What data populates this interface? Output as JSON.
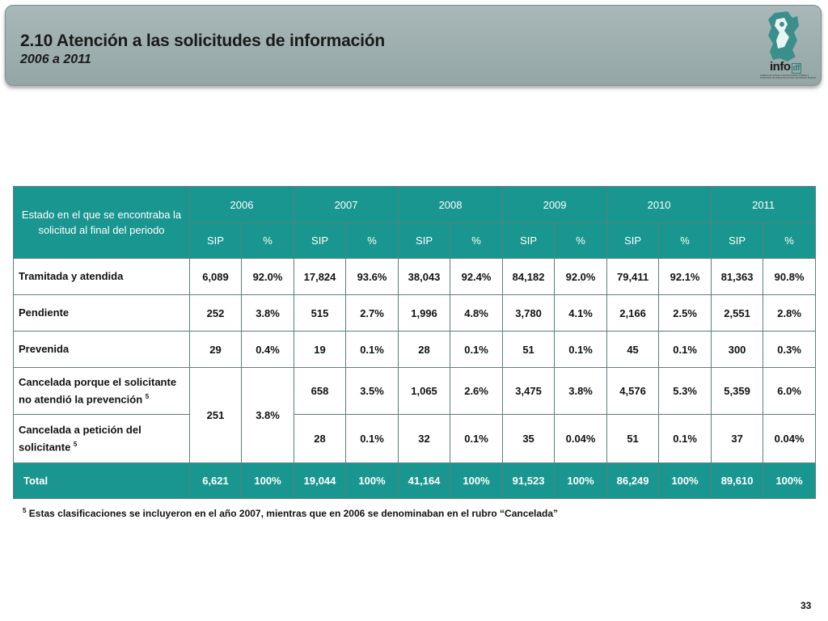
{
  "header": {
    "title": "2.10 Atención a las solicitudes de información",
    "subtitle": "2006 a 2011",
    "logo_text": "info",
    "logo_suffix": "df",
    "logo_caption": "Instituto de Acceso a la Información Pública y Protección de Datos Personales del Distrito Federal"
  },
  "table": {
    "first_header": "Estado en el que se encontraba la solicitud al final del  periodo",
    "years": [
      "2006",
      "2007",
      "2008",
      "2009",
      "2010",
      "2011"
    ],
    "sub_sip": "SIP",
    "sub_pct": "%",
    "rows": [
      {
        "label": "Tramitada y atendida",
        "sup": "",
        "values": [
          "6,089",
          "92.0%",
          "17,824",
          "93.6%",
          "38,043",
          "92.4%",
          "84,182",
          "92.0%",
          "79,411",
          "92.1%",
          "81,363",
          "90.8%"
        ]
      },
      {
        "label": "Pendiente",
        "sup": "",
        "values": [
          "252",
          "3.8%",
          "515",
          "2.7%",
          "1,996",
          "4.8%",
          "3,780",
          "4.1%",
          "2,166",
          "2.5%",
          "2,551",
          "2.8%"
        ]
      },
      {
        "label": "Prevenida",
        "sup": "",
        "values": [
          "29",
          "0.4%",
          "19",
          "0.1%",
          "28",
          "0.1%",
          "51",
          "0.1%",
          "45",
          "0.1%",
          "300",
          "0.3%"
        ]
      }
    ],
    "cancel_merged": {
      "sip": "251",
      "pct": "3.8%"
    },
    "cancel_rows": [
      {
        "label": "Cancelada porque el solicitante no atendió la prevención",
        "sup": "5",
        "values": [
          "658",
          "3.5%",
          "1,065",
          "2.6%",
          "3,475",
          "3.8%",
          "4,576",
          "5.3%",
          "5,359",
          "6.0%"
        ]
      },
      {
        "label": "Cancelada a petición del solicitante",
        "sup": "5",
        "values": [
          "28",
          "0.1%",
          "32",
          "0.1%",
          "35",
          "0.04%",
          "51",
          "0.1%",
          "37",
          "0.04%"
        ]
      }
    ],
    "total": {
      "label": "Total",
      "values": [
        "6,621",
        "100%",
        "19,044",
        "100%",
        "41,164",
        "100%",
        "91,523",
        "100%",
        "86,249",
        "100%",
        "89,610",
        "100%"
      ]
    }
  },
  "footnote": {
    "sup": "5",
    "text": "Estas clasificaciones se incluyeron en el  año 2007, mientras que en 2006 se denominaban en el rubro “Cancelada”"
  },
  "page_number": "33"
}
